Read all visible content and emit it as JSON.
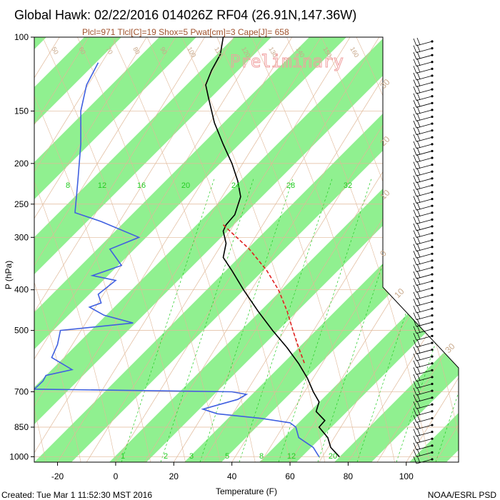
{
  "title": "Global Hawk: 02/22/2016 014026Z RF04 (26.91N,147.36W)",
  "subtitle": "Plcl=971 Tlcl[C]=19 Shox=5 Pwat[cm]=3 Cape[J]= 658",
  "watermark": "Preliminary",
  "footer_left": "Created: Tue Mar  1 11:52:30 MST 2016",
  "footer_right": "NOAA/ESRL PSD",
  "colors": {
    "band": "#90f090",
    "temperature": "#000000",
    "dewpoint": "#4060e0",
    "parcel": "#e02020",
    "isotherm": "#e0b898",
    "mixing_ratio": "#22cc22"
  },
  "chart_data": {
    "type": "line",
    "xlabel": "Temperature (F)",
    "ylabel": "P (hPa)",
    "x_ticks": [
      "-20",
      "0",
      "20",
      "40",
      "60",
      "80",
      "100"
    ],
    "y_ticks": [
      "100",
      "150",
      "200",
      "250",
      "300",
      "400",
      "500",
      "700",
      "850",
      "1000"
    ],
    "xlim": [
      -28,
      118
    ],
    "ylim": [
      100,
      1030
    ],
    "y_scale": "log",
    "mixing_ratio_labels": [
      "8",
      "12",
      "16",
      "20",
      "24",
      "28",
      "32"
    ],
    "mixing_ratio_labels_bottom": [
      "1",
      "2",
      "3",
      "5",
      "8",
      "12",
      "20"
    ],
    "isotherm_labels_left": [
      "50",
      "60",
      "70",
      "80",
      "90",
      "100",
      "110",
      "120",
      "130",
      "140",
      "150",
      "160"
    ],
    "isotherm_labels_right": [
      "30",
      "20",
      "10",
      "0",
      "10",
      "30"
    ],
    "series": [
      {
        "name": "",
        "color": "#000000",
        "points": [
          [
            37,
            100
          ],
          [
            36,
            110
          ],
          [
            33,
            120
          ],
          [
            31,
            130
          ],
          [
            32,
            140
          ],
          [
            34,
            160
          ],
          [
            37,
            180
          ],
          [
            40,
            200
          ],
          [
            42,
            220
          ],
          [
            43,
            240
          ],
          [
            41,
            265
          ],
          [
            38,
            280
          ],
          [
            37,
            290
          ],
          [
            38,
            310
          ],
          [
            37,
            335
          ],
          [
            40,
            360
          ],
          [
            44,
            400
          ],
          [
            49,
            450
          ],
          [
            54,
            500
          ],
          [
            59,
            550
          ],
          [
            63,
            600
          ],
          [
            66,
            650
          ],
          [
            68,
            700
          ],
          [
            70,
            740
          ],
          [
            69,
            780
          ],
          [
            72,
            820
          ],
          [
            70,
            850
          ],
          [
            73,
            900
          ],
          [
            74,
            950
          ],
          [
            77,
            1000
          ]
        ]
      },
      {
        "name": "",
        "color": "#4060e0",
        "points": [
          [
            -6,
            115
          ],
          [
            -10,
            130
          ],
          [
            -12,
            150
          ],
          [
            -12,
            180
          ],
          [
            -13,
            220
          ],
          [
            -14,
            262
          ],
          [
            -5,
            275
          ],
          [
            8,
            300
          ],
          [
            -2,
            320
          ],
          [
            2,
            350
          ],
          [
            -3,
            360
          ],
          [
            -8,
            370
          ],
          [
            0,
            380
          ],
          [
            -6,
            410
          ],
          [
            -5,
            430
          ],
          [
            -9,
            440
          ],
          [
            -4,
            460
          ],
          [
            6,
            480
          ],
          [
            -19,
            500
          ],
          [
            -20,
            540
          ],
          [
            -22,
            580
          ],
          [
            -15,
            620
          ],
          [
            -24,
            640
          ],
          [
            -25,
            660
          ],
          [
            -27,
            680
          ],
          [
            -28,
            690
          ],
          [
            40,
            700
          ],
          [
            45,
            710
          ],
          [
            42,
            730
          ],
          [
            30,
            770
          ],
          [
            35,
            790
          ],
          [
            50,
            810
          ],
          [
            60,
            830
          ],
          [
            62,
            850
          ],
          [
            63,
            900
          ],
          [
            68,
            950
          ],
          [
            70,
            1000
          ]
        ]
      },
      {
        "name": "",
        "color": "#e02020",
        "dashed": true,
        "points": [
          [
            37,
            280
          ],
          [
            46,
            320
          ],
          [
            52,
            360
          ],
          [
            56,
            400
          ],
          [
            59,
            450
          ],
          [
            61,
            500
          ],
          [
            63,
            550
          ],
          [
            65,
            600
          ]
        ]
      }
    ],
    "wind_barbs_count": 62
  }
}
